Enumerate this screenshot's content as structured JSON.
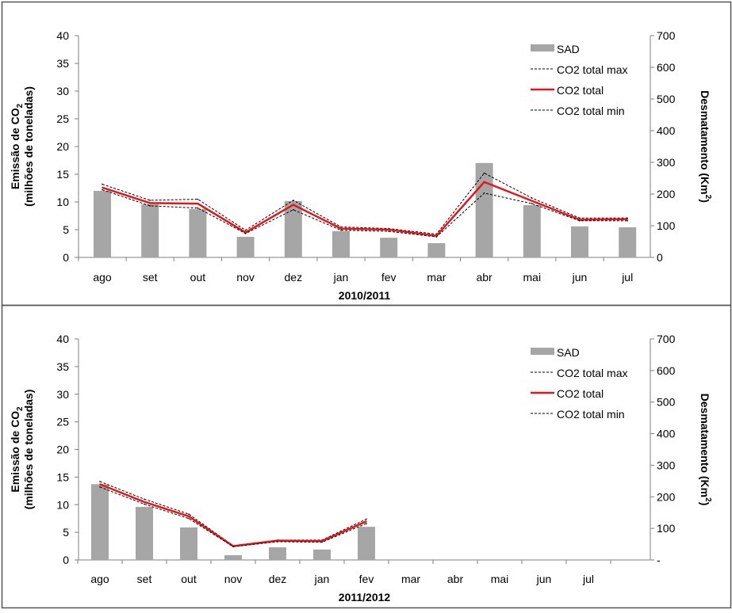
{
  "chart_data": [
    {
      "type": "bar+line",
      "xlabel": "2010/2011",
      "ylabel_line1": "Emissão de CO",
      "ylabel_sub": "2",
      "ylabel_line2": "(milhões de toneladas)",
      "y2label_main": "Desmatamento (Km",
      "y2label_sup": "2",
      "y2label_end": ")",
      "categories": [
        "ago",
        "set",
        "out",
        "nov",
        "dez",
        "jan",
        "fev",
        "mar",
        "abr",
        "mai",
        "jun",
        "jul"
      ],
      "ylim": [
        0,
        40
      ],
      "yticks": [
        "0",
        "5",
        "10",
        "15",
        "20",
        "25",
        "30",
        "35",
        "40"
      ],
      "y2lim": [
        0,
        700
      ],
      "y2ticks": [
        "0",
        "100",
        "200",
        "300",
        "400",
        "500",
        "600",
        "700"
      ],
      "legend_position": "top-right",
      "series": [
        {
          "name": "SAD",
          "axis": "right",
          "kind": "bar",
          "color": "#a6a6a6",
          "values": [
            210,
            168,
            153,
            65,
            178,
            83,
            62,
            45,
            298,
            165,
            98,
            95
          ]
        },
        {
          "name": "CO2 total max",
          "axis": "left",
          "kind": "dashed",
          "color": "#000000",
          "values": [
            13.2,
            10.3,
            10.5,
            4.9,
            10.3,
            5.5,
            5.2,
            4.2,
            15.2,
            10.7,
            7.1,
            7.1
          ]
        },
        {
          "name": "CO2 total",
          "axis": "left",
          "kind": "line",
          "color": "#e8141b",
          "values": [
            12.6,
            9.8,
            9.7,
            4.5,
            9.5,
            5.2,
            5.0,
            3.9,
            13.6,
            10.2,
            6.8,
            6.9
          ]
        },
        {
          "name": "CO2 total min",
          "axis": "left",
          "kind": "dashed",
          "color": "#000000",
          "values": [
            12.2,
            9.3,
            8.9,
            4.3,
            8.6,
            4.9,
            4.7,
            3.7,
            11.6,
            9.7,
            6.6,
            6.6
          ]
        }
      ]
    },
    {
      "type": "bar+line",
      "xlabel": "2011/2012",
      "ylabel_line1": "Emissão de CO",
      "ylabel_sub": "2",
      "ylabel_line2": "(milhões de toneladas)",
      "y2label_main": "Desmatamento (Km",
      "y2label_sup": "2",
      "y2label_end": ")",
      "categories": [
        "ago",
        "set",
        "out",
        "nov",
        "dez",
        "jan",
        "fev",
        "mar",
        "abr",
        "mai",
        "jun",
        "jul"
      ],
      "ylim": [
        0,
        40
      ],
      "yticks": [
        "0",
        "5",
        "10",
        "15",
        "20",
        "25",
        "30",
        "35",
        "40"
      ],
      "y2lim": [
        0,
        700
      ],
      "y2ticks": [
        "-",
        "100",
        "200",
        "300",
        "400",
        "500",
        "600",
        "700"
      ],
      "legend_position": "top-right",
      "series": [
        {
          "name": "SAD",
          "axis": "right",
          "kind": "bar",
          "color": "#a6a6a6",
          "values": [
            240,
            168,
            103,
            15,
            40,
            33,
            105,
            null,
            null,
            null,
            null,
            null
          ]
        },
        {
          "name": "CO2 total max",
          "axis": "left",
          "kind": "dashed",
          "color": "#000000",
          "values": [
            14.2,
            11.0,
            8.3,
            2.6,
            3.6,
            3.6,
            7.4,
            null,
            null,
            null,
            null,
            null
          ]
        },
        {
          "name": "CO2 total",
          "axis": "left",
          "kind": "line",
          "color": "#e8141b",
          "values": [
            13.7,
            10.5,
            7.9,
            2.5,
            3.5,
            3.4,
            7.0,
            null,
            null,
            null,
            null,
            null
          ]
        },
        {
          "name": "CO2 total min",
          "axis": "left",
          "kind": "dashed",
          "color": "#000000",
          "values": [
            13.2,
            10.1,
            7.5,
            2.4,
            3.3,
            3.2,
            6.6,
            null,
            null,
            null,
            null,
            null
          ]
        }
      ]
    }
  ]
}
